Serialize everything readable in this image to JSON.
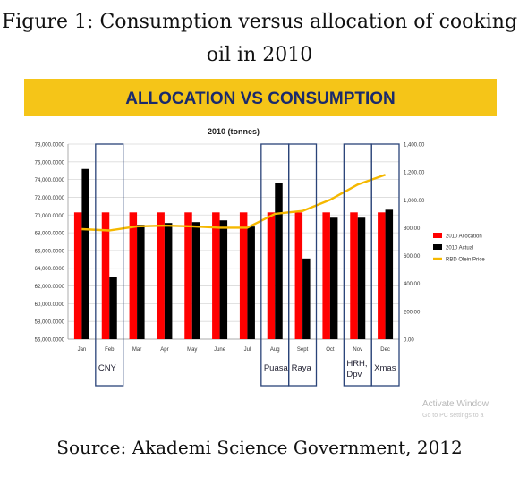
{
  "caption": {
    "line1": "Figure 1: Consumption versus allocation of cooking",
    "line2": "oil in 2010",
    "source": "Source: Akademi Science Government, 2012"
  },
  "banner": {
    "title": "ALLOCATION VS CONSUMPTION",
    "color": "#f5c518"
  },
  "watermark": {
    "line1": "Activate Window",
    "line2": "Go to PC settings to a"
  },
  "chart_data": {
    "type": "bar",
    "title": "2010 (tonnes)",
    "categories": [
      "Jan",
      "Feb",
      "Mar",
      "Apr",
      "May",
      "June",
      "Jul",
      "Aug",
      "Sept",
      "Oct",
      "Nov",
      "Dec"
    ],
    "ylim_left": [
      56000,
      78000
    ],
    "yticks_left": [
      "78,000.0000",
      "76,000.0000",
      "74,000.0000",
      "72,000.0000",
      "70,000.0000",
      "68,000.0000",
      "66,000.0000",
      "64,000.0000",
      "62,000.0000",
      "60,000.0000",
      "58,000.0000",
      "56,000.0000"
    ],
    "ylim_right": [
      0,
      1400
    ],
    "yticks_right": [
      "1,400.00",
      "1,200.00",
      "1,000.00",
      "800.00",
      "600.00",
      "400.00",
      "200.00",
      "0.00"
    ],
    "series": [
      {
        "name": "2010 Allocation",
        "type": "bar",
        "axis": "left",
        "color": "#ff0000",
        "values": [
          70300,
          70300,
          70300,
          70300,
          70300,
          70300,
          70300,
          70300,
          70300,
          70300,
          70300,
          70300
        ]
      },
      {
        "name": "2010 Actual",
        "type": "bar",
        "axis": "left",
        "color": "#000000",
        "values": [
          75200,
          63000,
          68900,
          69100,
          69200,
          69400,
          68700,
          73600,
          65100,
          69700,
          69700,
          70600
        ]
      },
      {
        "name": "RBD Olein Price",
        "type": "line",
        "axis": "right",
        "color": "#f5b800",
        "values": [
          790,
          780,
          810,
          815,
          810,
          800,
          800,
          900,
          920,
          1000,
          1110,
          1180
        ]
      }
    ],
    "legend": "right",
    "grid": true,
    "annotations": [
      {
        "label": "CNY",
        "from": "Feb",
        "to": "Feb"
      },
      {
        "label": "Puasa",
        "from": "Aug",
        "to": "Aug"
      },
      {
        "label": "Raya",
        "from": "Sept",
        "to": "Sept"
      },
      {
        "label": "HRH, Dpv",
        "from": "Nov",
        "to": "Nov"
      },
      {
        "label": "Xmas",
        "from": "Dec",
        "to": "Dec"
      }
    ]
  }
}
